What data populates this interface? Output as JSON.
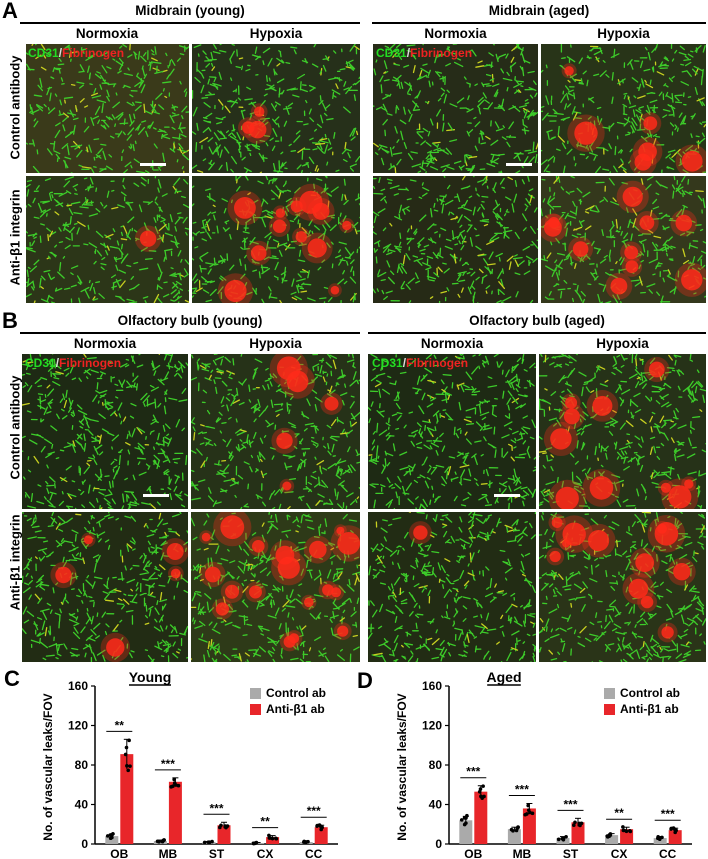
{
  "panels": {
    "A": {
      "letter": "A",
      "groups": [
        {
          "title": "Midbrain (young)",
          "cols": [
            "Normoxia",
            "Hypoxia"
          ]
        },
        {
          "title": "Midbrain (aged)",
          "cols": [
            "Normoxia",
            "Hypoxia"
          ]
        }
      ],
      "rows": [
        "Control antibody",
        "Anti-β1 integrin"
      ]
    },
    "B": {
      "letter": "B",
      "groups": [
        {
          "title": "Olfactory bulb (young)",
          "cols": [
            "Normoxia",
            "Hypoxia"
          ]
        },
        {
          "title": "Olfactory bulb (aged)",
          "cols": [
            "Normoxia",
            "Hypoxia"
          ]
        }
      ],
      "rows": [
        "Control antibody",
        "Anti-β1 integrin"
      ]
    }
  },
  "stain_label": {
    "green": "CD31",
    "sep": "/",
    "red": "Fibrinogen"
  },
  "colors": {
    "control": "#aaaaaa",
    "anti": "#e8262a",
    "vessel": "#3dcc2a",
    "leak": "#ff2a1a",
    "tissue": "#26301a"
  },
  "chart_data": [
    {
      "letter": "C",
      "type": "bar",
      "title": "Young",
      "ylabel": "No. of vascular leaks/FOV",
      "ylim": [
        0,
        160
      ],
      "yticks": [
        0,
        40,
        80,
        120,
        160
      ],
      "categories": [
        "OB",
        "MB",
        "ST",
        "CX",
        "CC"
      ],
      "series": [
        {
          "name": "Control ab",
          "values": [
            8,
            3,
            2,
            1,
            2
          ],
          "errors": [
            2,
            1,
            0.5,
            0.5,
            0.5
          ]
        },
        {
          "name": "Anti-β1 ab",
          "values": [
            91,
            63,
            19,
            7,
            17
          ],
          "errors": [
            15,
            4,
            3,
            1.5,
            2
          ]
        }
      ],
      "significance": [
        "**",
        "***",
        "***",
        "**",
        "***"
      ]
    },
    {
      "letter": "D",
      "type": "bar",
      "title": "Aged",
      "ylabel": "No. of vascular leaks/FOV",
      "ylim": [
        0,
        160
      ],
      "yticks": [
        0,
        40,
        80,
        120,
        160
      ],
      "categories": [
        "OB",
        "MB",
        "ST",
        "CX",
        "CC"
      ],
      "series": [
        {
          "name": "Control ab",
          "values": [
            24,
            15,
            6,
            9,
            6
          ],
          "errors": [
            4,
            2,
            1.5,
            1.5,
            1
          ]
        },
        {
          "name": "Anti-β1 ab",
          "values": [
            53,
            36,
            22,
            15,
            14
          ],
          "errors": [
            6,
            5,
            4,
            2,
            2
          ]
        }
      ],
      "significance": [
        "***",
        "***",
        "***",
        "**",
        "***"
      ]
    }
  ]
}
